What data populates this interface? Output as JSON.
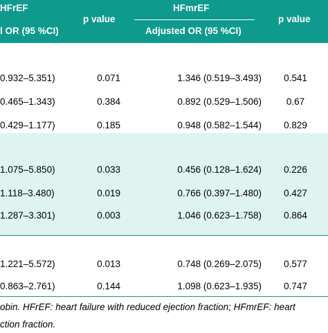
{
  "header": {
    "group1": "HFrEF",
    "group2": "HFmrEF",
    "pvalue1": "p value",
    "pvalue2": "p value",
    "sub1": "l OR (95 %CI)",
    "sub2": "Adjusted OR (95 %CI)"
  },
  "rows": [
    {
      "ci": "0.932–5.351)",
      "p1": "0.071",
      "or2": "1.346 (0.519–3.493)",
      "p2": "0.541"
    },
    {
      "ci": "0.465–1.343)",
      "p1": "0.384",
      "or2": "0.892 (0.529–1.506)",
      "p2": "0.67"
    },
    {
      "ci": "0.429–1.177)",
      "p1": "0.185",
      "or2": "0.948 (0.582–1.544)",
      "p2": "0.829"
    },
    {
      "ci": "1.075–5.850)",
      "p1": "0.033",
      "or2": "0.456 (0.128–1.624)",
      "p2": "0.226"
    },
    {
      "ci": "1.118–3.480)",
      "p1": "0.019",
      "or2": "0.766 (0.397–1.480)",
      "p2": "0.427"
    },
    {
      "ci": "1.287–3.301)",
      "p1": "0.003",
      "or2": "1.046 (0.623–1.758)",
      "p2": "0.864"
    },
    {
      "ci": "1.221–5.572)",
      "p1": "0.013",
      "or2": "0.748 (0.269–2.075)",
      "p2": "0.577"
    },
    {
      "ci": "0.863–2.761)",
      "p1": "0.144",
      "or2": "1.098 (0.623–1.935)",
      "p2": "0.747"
    }
  ],
  "footnote": {
    "line1": "obin. HFrEF: heart failure with reduced ejection fraction; HFmrEF: heart",
    "line2": "ction fraction."
  }
}
